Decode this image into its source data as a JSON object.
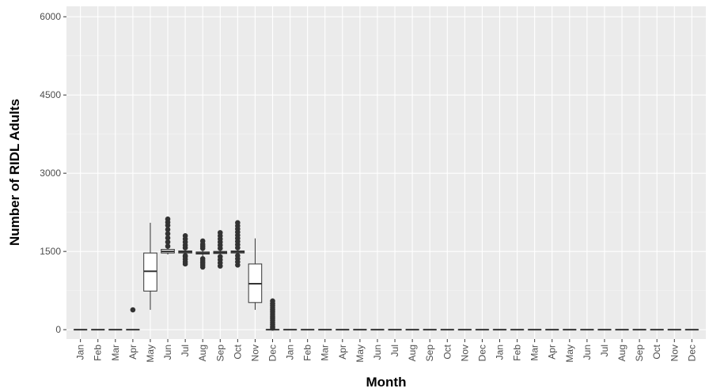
{
  "chart_data": {
    "type": "box",
    "xlabel": "Month",
    "ylabel": "Number of RIDL Adults",
    "ylim": [
      -180,
      6200
    ],
    "yticks": [
      0,
      1500,
      3000,
      4500,
      6000
    ],
    "ytick_labels": [
      "0",
      "1500",
      "3000",
      "4500",
      "6000"
    ],
    "grid": true,
    "legend": "none",
    "colors": {
      "panel": "#ebebeb",
      "grid_major": "#ffffff",
      "box_fill": "#ffffff",
      "box_line": "#333333",
      "outlier": "#333333"
    },
    "categories": [
      "Jan",
      "Feb",
      "Mar",
      "Apr",
      "May",
      "Jun",
      "Jul",
      "Aug",
      "Sep",
      "Oct",
      "Nov",
      "Dec",
      "Jan",
      "Feb",
      "Mar",
      "Apr",
      "May",
      "Jun",
      "Jul",
      "Aug",
      "Sep",
      "Oct",
      "Nov",
      "Dec",
      "Jan",
      "Feb",
      "Mar",
      "Apr",
      "May",
      "Jun",
      "Jul",
      "Aug",
      "Sep",
      "Oct",
      "Nov",
      "Dec"
    ],
    "boxes": [
      {
        "min": 0,
        "q1": 0,
        "median": 0,
        "q3": 0,
        "max": 0,
        "outliers": []
      },
      {
        "min": 0,
        "q1": 0,
        "median": 0,
        "q3": 0,
        "max": 0,
        "outliers": []
      },
      {
        "min": 0,
        "q1": 0,
        "median": 0,
        "q3": 0,
        "max": 0,
        "outliers": []
      },
      {
        "min": 0,
        "q1": 0,
        "median": 0,
        "q3": 0,
        "max": 0,
        "outliers": [
          380
        ]
      },
      {
        "min": 380,
        "q1": 740,
        "median": 1120,
        "q3": 1470,
        "max": 2050,
        "outliers": []
      },
      {
        "min": 1440,
        "q1": 1470,
        "median": 1500,
        "q3": 1540,
        "max": 1590,
        "outliers": [
          1600,
          1680,
          1760,
          1840,
          1920,
          2000,
          2060,
          2120
        ]
      },
      {
        "min": 1440,
        "q1": 1470,
        "median": 1490,
        "q3": 1510,
        "max": 1540,
        "outliers": [
          1260,
          1300,
          1350,
          1400,
          1420,
          1570,
          1620,
          1680,
          1740,
          1800
        ]
      },
      {
        "min": 1400,
        "q1": 1450,
        "median": 1470,
        "q3": 1490,
        "max": 1530,
        "outliers": [
          1200,
          1240,
          1280,
          1320,
          1360,
          1560,
          1600,
          1640,
          1700
        ]
      },
      {
        "min": 1430,
        "q1": 1460,
        "median": 1480,
        "q3": 1500,
        "max": 1530,
        "outliers": [
          1220,
          1280,
          1340,
          1400,
          1560,
          1620,
          1680,
          1740,
          1800,
          1860
        ]
      },
      {
        "min": 1440,
        "q1": 1470,
        "median": 1490,
        "q3": 1510,
        "max": 1540,
        "outliers": [
          1240,
          1300,
          1360,
          1420,
          1570,
          1630,
          1690,
          1750,
          1810,
          1870,
          1930,
          1990,
          2050
        ]
      },
      {
        "min": 380,
        "q1": 520,
        "median": 880,
        "q3": 1260,
        "max": 1750,
        "outliers": []
      },
      {
        "min": 0,
        "q1": 0,
        "median": 0,
        "q3": 0,
        "max": 0,
        "outliers": [
          30,
          60,
          100,
          140,
          180,
          220,
          260,
          300,
          340,
          380,
          420,
          460,
          500,
          550
        ]
      },
      {
        "min": 0,
        "q1": 0,
        "median": 0,
        "q3": 0,
        "max": 0,
        "outliers": []
      },
      {
        "min": 0,
        "q1": 0,
        "median": 0,
        "q3": 0,
        "max": 0,
        "outliers": []
      },
      {
        "min": 0,
        "q1": 0,
        "median": 0,
        "q3": 0,
        "max": 0,
        "outliers": []
      },
      {
        "min": 0,
        "q1": 0,
        "median": 0,
        "q3": 0,
        "max": 0,
        "outliers": []
      },
      {
        "min": 0,
        "q1": 0,
        "median": 0,
        "q3": 0,
        "max": 0,
        "outliers": []
      },
      {
        "min": 0,
        "q1": 0,
        "median": 0,
        "q3": 0,
        "max": 0,
        "outliers": []
      },
      {
        "min": 0,
        "q1": 0,
        "median": 0,
        "q3": 0,
        "max": 0,
        "outliers": []
      },
      {
        "min": 0,
        "q1": 0,
        "median": 0,
        "q3": 0,
        "max": 0,
        "outliers": []
      },
      {
        "min": 0,
        "q1": 0,
        "median": 0,
        "q3": 0,
        "max": 0,
        "outliers": []
      },
      {
        "min": 0,
        "q1": 0,
        "median": 0,
        "q3": 0,
        "max": 0,
        "outliers": []
      },
      {
        "min": 0,
        "q1": 0,
        "median": 0,
        "q3": 0,
        "max": 0,
        "outliers": []
      },
      {
        "min": 0,
        "q1": 0,
        "median": 0,
        "q3": 0,
        "max": 0,
        "outliers": []
      },
      {
        "min": 0,
        "q1": 0,
        "median": 0,
        "q3": 0,
        "max": 0,
        "outliers": []
      },
      {
        "min": 0,
        "q1": 0,
        "median": 0,
        "q3": 0,
        "max": 0,
        "outliers": []
      },
      {
        "min": 0,
        "q1": 0,
        "median": 0,
        "q3": 0,
        "max": 0,
        "outliers": []
      },
      {
        "min": 0,
        "q1": 0,
        "median": 0,
        "q3": 0,
        "max": 0,
        "outliers": []
      },
      {
        "min": 0,
        "q1": 0,
        "median": 0,
        "q3": 0,
        "max": 0,
        "outliers": []
      },
      {
        "min": 0,
        "q1": 0,
        "median": 0,
        "q3": 0,
        "max": 0,
        "outliers": []
      },
      {
        "min": 0,
        "q1": 0,
        "median": 0,
        "q3": 0,
        "max": 0,
        "outliers": []
      },
      {
        "min": 0,
        "q1": 0,
        "median": 0,
        "q3": 0,
        "max": 0,
        "outliers": []
      },
      {
        "min": 0,
        "q1": 0,
        "median": 0,
        "q3": 0,
        "max": 0,
        "outliers": []
      },
      {
        "min": 0,
        "q1": 0,
        "median": 0,
        "q3": 0,
        "max": 0,
        "outliers": []
      },
      {
        "min": 0,
        "q1": 0,
        "median": 0,
        "q3": 0,
        "max": 0,
        "outliers": []
      },
      {
        "min": 0,
        "q1": 0,
        "median": 0,
        "q3": 0,
        "max": 0,
        "outliers": []
      }
    ]
  }
}
